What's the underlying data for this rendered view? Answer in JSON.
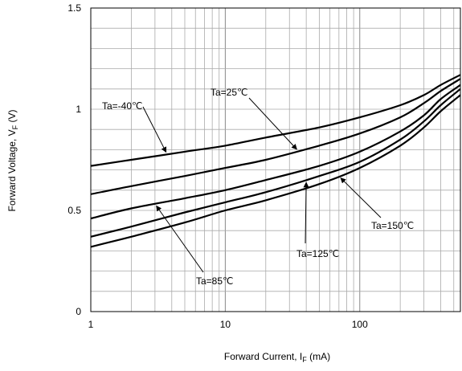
{
  "chart_data": {
    "type": "line",
    "title": "",
    "xlabel": {
      "main": "Forward Current, I",
      "sub": "F",
      "unit": " (mA)"
    },
    "ylabel": {
      "main": "Forward Voltage, V",
      "sub": "F",
      "unit": " (V)"
    },
    "xscale": "log",
    "xlim": [
      1,
      560
    ],
    "ylim": [
      0,
      1.5
    ],
    "x_ticks": [
      {
        "value": 1,
        "label": "1"
      },
      {
        "value": 10,
        "label": "10"
      },
      {
        "value": 100,
        "label": "100"
      }
    ],
    "y_ticks": [
      {
        "value": 0,
        "label": "0"
      },
      {
        "value": 0.5,
        "label": "0.5"
      },
      {
        "value": 1,
        "label": "1"
      },
      {
        "value": 1.5,
        "label": "1.5"
      }
    ],
    "grid": true,
    "line_color": "#000000",
    "x": [
      1,
      2,
      5,
      10,
      20,
      50,
      100,
      200,
      300,
      400,
      560
    ],
    "series": [
      {
        "name": "Ta=-40℃",
        "values": [
          0.72,
          0.75,
          0.79,
          0.82,
          0.86,
          0.91,
          0.96,
          1.02,
          1.07,
          1.12,
          1.17
        ]
      },
      {
        "name": "Ta=25℃",
        "values": [
          0.58,
          0.62,
          0.67,
          0.71,
          0.75,
          0.82,
          0.88,
          0.96,
          1.03,
          1.09,
          1.15
        ]
      },
      {
        "name": "Ta=85℃",
        "values": [
          0.46,
          0.51,
          0.56,
          0.6,
          0.65,
          0.72,
          0.79,
          0.89,
          0.97,
          1.05,
          1.12
        ]
      },
      {
        "name": "Ta=125℃",
        "values": [
          0.37,
          0.42,
          0.49,
          0.54,
          0.59,
          0.67,
          0.74,
          0.85,
          0.94,
          1.02,
          1.1
        ]
      },
      {
        "name": "Ta=150℃",
        "values": [
          0.32,
          0.37,
          0.44,
          0.5,
          0.55,
          0.63,
          0.71,
          0.82,
          0.91,
          0.99,
          1.07
        ]
      }
    ],
    "annotations": [
      {
        "text": "Ta=-40℃",
        "series": 0,
        "at_x": 3.7
      },
      {
        "text": "Ta=25℃",
        "series": 1,
        "at_x": 35
      },
      {
        "text": "Ta=85℃",
        "series": 2,
        "at_x": 3
      },
      {
        "text": "Ta=125℃",
        "series": 3,
        "at_x": 40
      },
      {
        "text": "Ta=150℃",
        "series": 4,
        "at_x": 70
      }
    ]
  }
}
